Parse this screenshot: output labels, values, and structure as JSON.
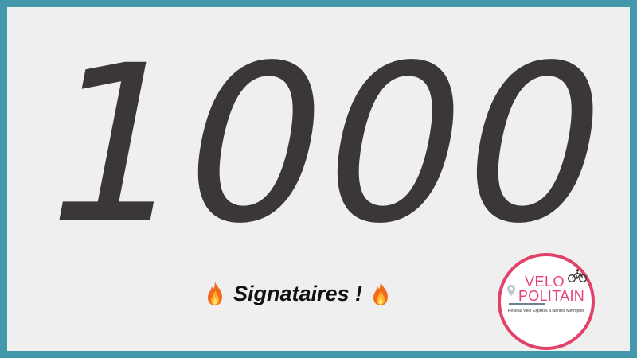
{
  "headline": {
    "number": "1000"
  },
  "caption": {
    "text": "Signataires !",
    "icon_left": "fire-icon",
    "icon_right": "fire-icon"
  },
  "logo": {
    "line1": "VELO",
    "line2": "POLITAIN",
    "tagline": "Réseau Vélo Express à Nantes Métropole",
    "ring_color": "#e0426a",
    "text_color": "#e8407a",
    "icons": [
      "bicycle-icon",
      "map-pin-icon"
    ]
  },
  "colors": {
    "frame": "#4399ab",
    "background": "#efefef",
    "number": "#3b3739"
  }
}
